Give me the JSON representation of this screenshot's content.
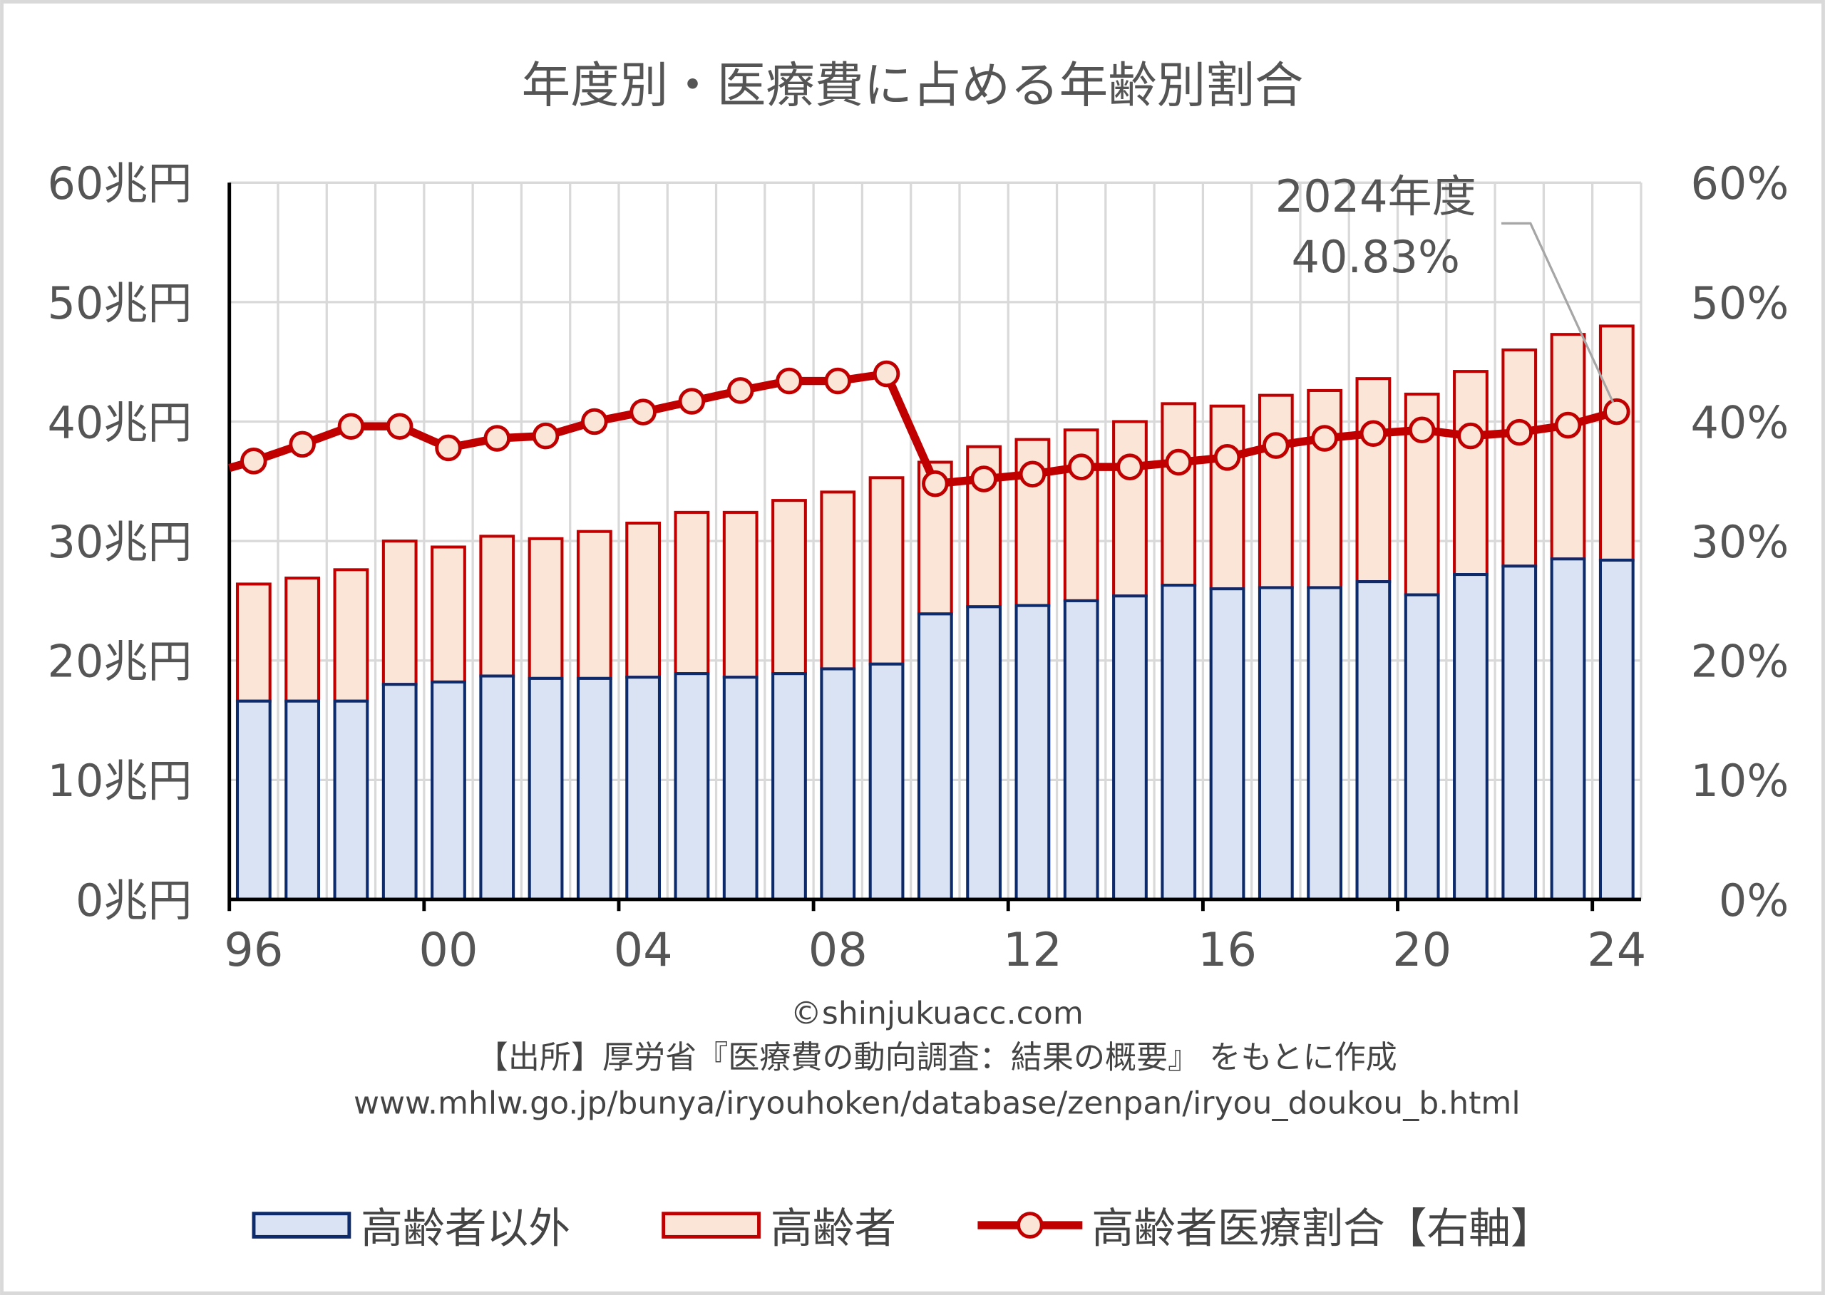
{
  "chart_data": {
    "type": "bar",
    "title": "年度別・医療費に占める年齢別割合",
    "categories": [
      "96",
      "97",
      "98",
      "99",
      "00",
      "01",
      "02",
      "03",
      "04",
      "05",
      "06",
      "07",
      "08",
      "09",
      "10",
      "11",
      "12",
      "13",
      "14",
      "15",
      "16",
      "17",
      "18",
      "19",
      "20",
      "21",
      "22",
      "23",
      "24"
    ],
    "x_tick_labels": [
      "96",
      "00",
      "04",
      "08",
      "12",
      "16",
      "20",
      "24"
    ],
    "y_left": {
      "ticks": [
        "0兆円",
        "10兆円",
        "20兆円",
        "30兆円",
        "40兆円",
        "50兆円",
        "60兆円"
      ],
      "range": [
        0,
        60
      ],
      "unit": "兆円"
    },
    "y_right": {
      "ticks": [
        "0%",
        "10%",
        "20%",
        "30%",
        "40%",
        "50%",
        "60%"
      ],
      "range": [
        0,
        60
      ],
      "unit": "%"
    },
    "grid": true,
    "stacked": true,
    "series": [
      {
        "name": "高齢者以外",
        "kind": "bar",
        "axis": "left",
        "fill": "#dae3f3",
        "stroke": "#0d2a6b",
        "values": [
          16.6,
          16.6,
          16.6,
          18.0,
          18.2,
          18.7,
          18.5,
          18.5,
          18.6,
          18.9,
          18.6,
          18.9,
          19.3,
          19.7,
          23.9,
          24.5,
          24.6,
          25.0,
          25.4,
          26.3,
          26.0,
          26.1,
          26.1,
          26.6,
          25.5,
          27.2,
          27.9,
          28.5,
          28.4
        ]
      },
      {
        "name": "高齢者",
        "kind": "bar",
        "axis": "left",
        "fill": "#fbe5d6",
        "stroke": "#c00000",
        "values": [
          9.8,
          10.3,
          11.0,
          12.0,
          11.3,
          11.7,
          11.7,
          12.3,
          12.9,
          13.5,
          13.8,
          14.5,
          14.8,
          15.6,
          12.7,
          13.4,
          13.9,
          14.3,
          14.6,
          15.2,
          15.3,
          16.1,
          16.5,
          17.0,
          16.8,
          17.0,
          18.1,
          18.8,
          19.6
        ]
      },
      {
        "name": "高齢者医療割合【右軸】",
        "kind": "line",
        "axis": "right",
        "color": "#c00000",
        "values": [
          36.7,
          38.1,
          39.6,
          39.6,
          37.8,
          38.6,
          38.8,
          40.0,
          40.8,
          41.7,
          42.6,
          43.4,
          43.4,
          44.0,
          34.8,
          35.2,
          35.6,
          36.2,
          36.2,
          36.6,
          37.0,
          38.0,
          38.6,
          39.0,
          39.3,
          38.8,
          39.1,
          39.7,
          40.83
        ]
      }
    ],
    "annotation": {
      "line1": "2024年度",
      "line2": "40.83%"
    },
    "legend_position": "bottom",
    "credit": "©shinjukuacc.com",
    "source": "【出所】厚労省『医療費の動向調査：結果の概要』 をもとに作成",
    "url": "www.mhlw.go.jp/bunya/iryouhoken/database/zenpan/iryou_doukou_b.html"
  }
}
